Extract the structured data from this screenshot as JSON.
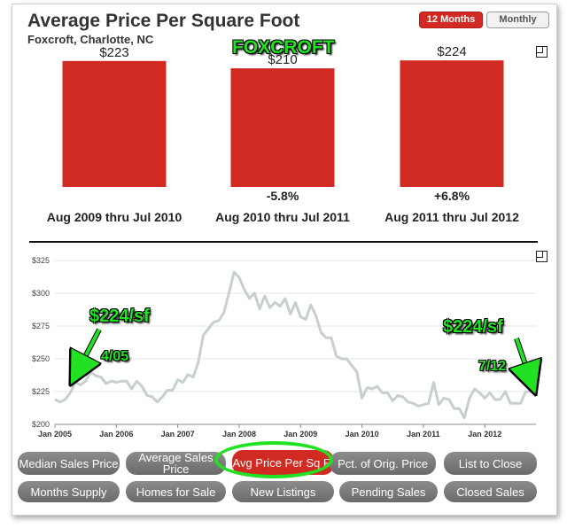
{
  "header": {
    "title": "Average Price Per Square Foot",
    "subtitle": "Foxcroft, Charlotte, NC",
    "toggle_active": "12 Months",
    "toggle_inactive": "Monthly"
  },
  "annotations": {
    "neighborhood": "FOXCROFT",
    "left_price": "$224/sf",
    "left_date": "4/05",
    "right_price": "$224/sf",
    "right_date": "7/12"
  },
  "colors": {
    "bar": "#d12a23",
    "line": "#c7d0cc",
    "annotation": "#22e122"
  },
  "chart_data": [
    {
      "type": "bar",
      "categories": [
        "Aug 2009 thru Jul 2010",
        "Aug 2010 thru Jul 2011",
        "Aug 2011 thru Jul 2012"
      ],
      "values": [
        223,
        210,
        224
      ],
      "value_labels": [
        "$223",
        "$210",
        "$224"
      ],
      "change_labels": [
        "",
        "-5.8%",
        "+6.8%"
      ],
      "title": "Average Price Per Square Foot"
    },
    {
      "type": "line",
      "series": [
        {
          "values": [
            219,
            217,
            219,
            224,
            232,
            230,
            233,
            240,
            237,
            236,
            231,
            233,
            232,
            233,
            233,
            227,
            233,
            229,
            222,
            221,
            217,
            221,
            226,
            226,
            234,
            232,
            238,
            236,
            247,
            268,
            273,
            278,
            279,
            285,
            300,
            316,
            312,
            303,
            296,
            300,
            288,
            298,
            289,
            293,
            290,
            296,
            284,
            293,
            282,
            280,
            291,
            283,
            270,
            266,
            266,
            252,
            250,
            250,
            245,
            240,
            220,
            228,
            227,
            229,
            224,
            224,
            218,
            222,
            221,
            217,
            216,
            214,
            215,
            216,
            232,
            215,
            220,
            219,
            212,
            212,
            205,
            220,
            227,
            224,
            220,
            224,
            219,
            219,
            225,
            216,
            216,
            216,
            225,
            225,
            225
          ]
        }
      ],
      "x_ticks": [
        "Jan 2005",
        "Jan 2006",
        "Jan 2007",
        "Jan 2008",
        "Jan 2009",
        "Jan 2010",
        "Jan 2011",
        "Jan 2012"
      ],
      "y_ticks": [
        "$200",
        "$225",
        "$250",
        "$275",
        "$300",
        "$325"
      ],
      "ylim": [
        200,
        325
      ],
      "x_start": "Jan 2005",
      "x_end": "Jul 2012"
    }
  ],
  "nav": {
    "median_sales_price": "Median Sales Price",
    "average_sales_price": "Average Sales Price",
    "avg_price_per_sq_ft": "Avg Price Per Sq Ft",
    "pct_of_orig_price": "Pct. of Orig. Price",
    "list_to_close": "List to Close",
    "months_supply": "Months Supply",
    "homes_for_sale": "Homes for Sale",
    "new_listings": "New Listings",
    "pending_sales": "Pending Sales",
    "closed_sales": "Closed Sales"
  }
}
